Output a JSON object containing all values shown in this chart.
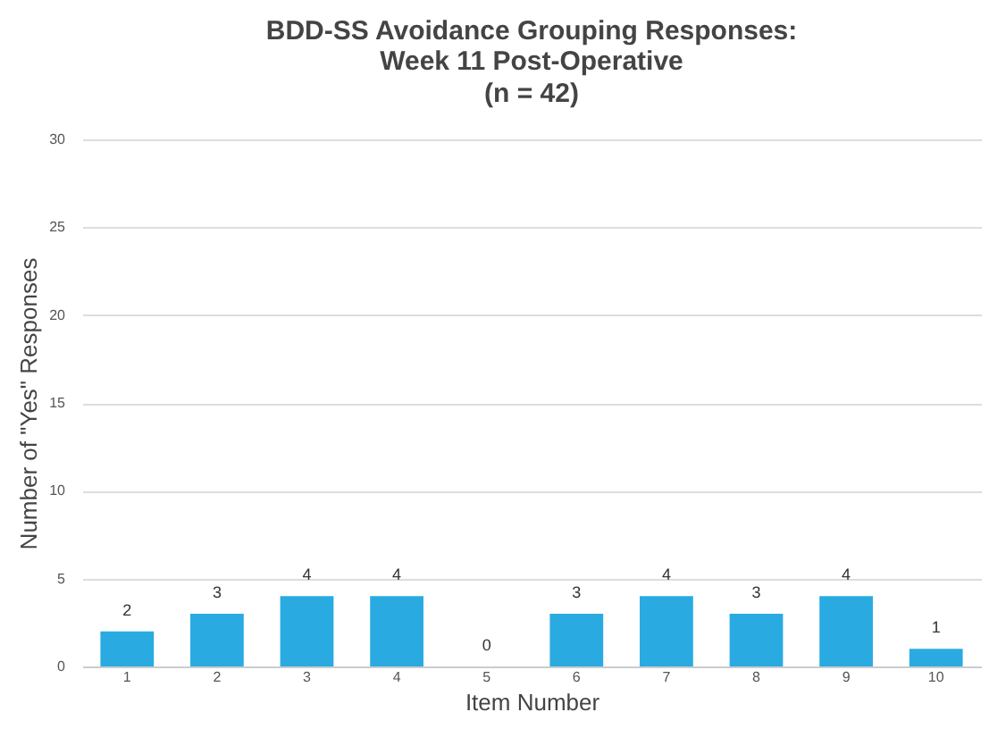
{
  "chart_data": {
    "type": "bar",
    "title": "BDD-SS Avoidance Grouping Responses:\nWeek 11 Post-Operative",
    "subtitle": "(n = 42)",
    "xlabel": "Item Number",
    "ylabel": "Number of \"Yes\" Responses",
    "categories": [
      "1",
      "2",
      "3",
      "4",
      "5",
      "6",
      "7",
      "8",
      "9",
      "10"
    ],
    "values": [
      2,
      3,
      4,
      4,
      0,
      3,
      4,
      3,
      4,
      1
    ],
    "color": "#29abe2",
    "ylim": [
      0,
      30
    ],
    "yticks": [
      0,
      5,
      10,
      15,
      20,
      25,
      30
    ],
    "grid": "y",
    "data_labels": true
  }
}
